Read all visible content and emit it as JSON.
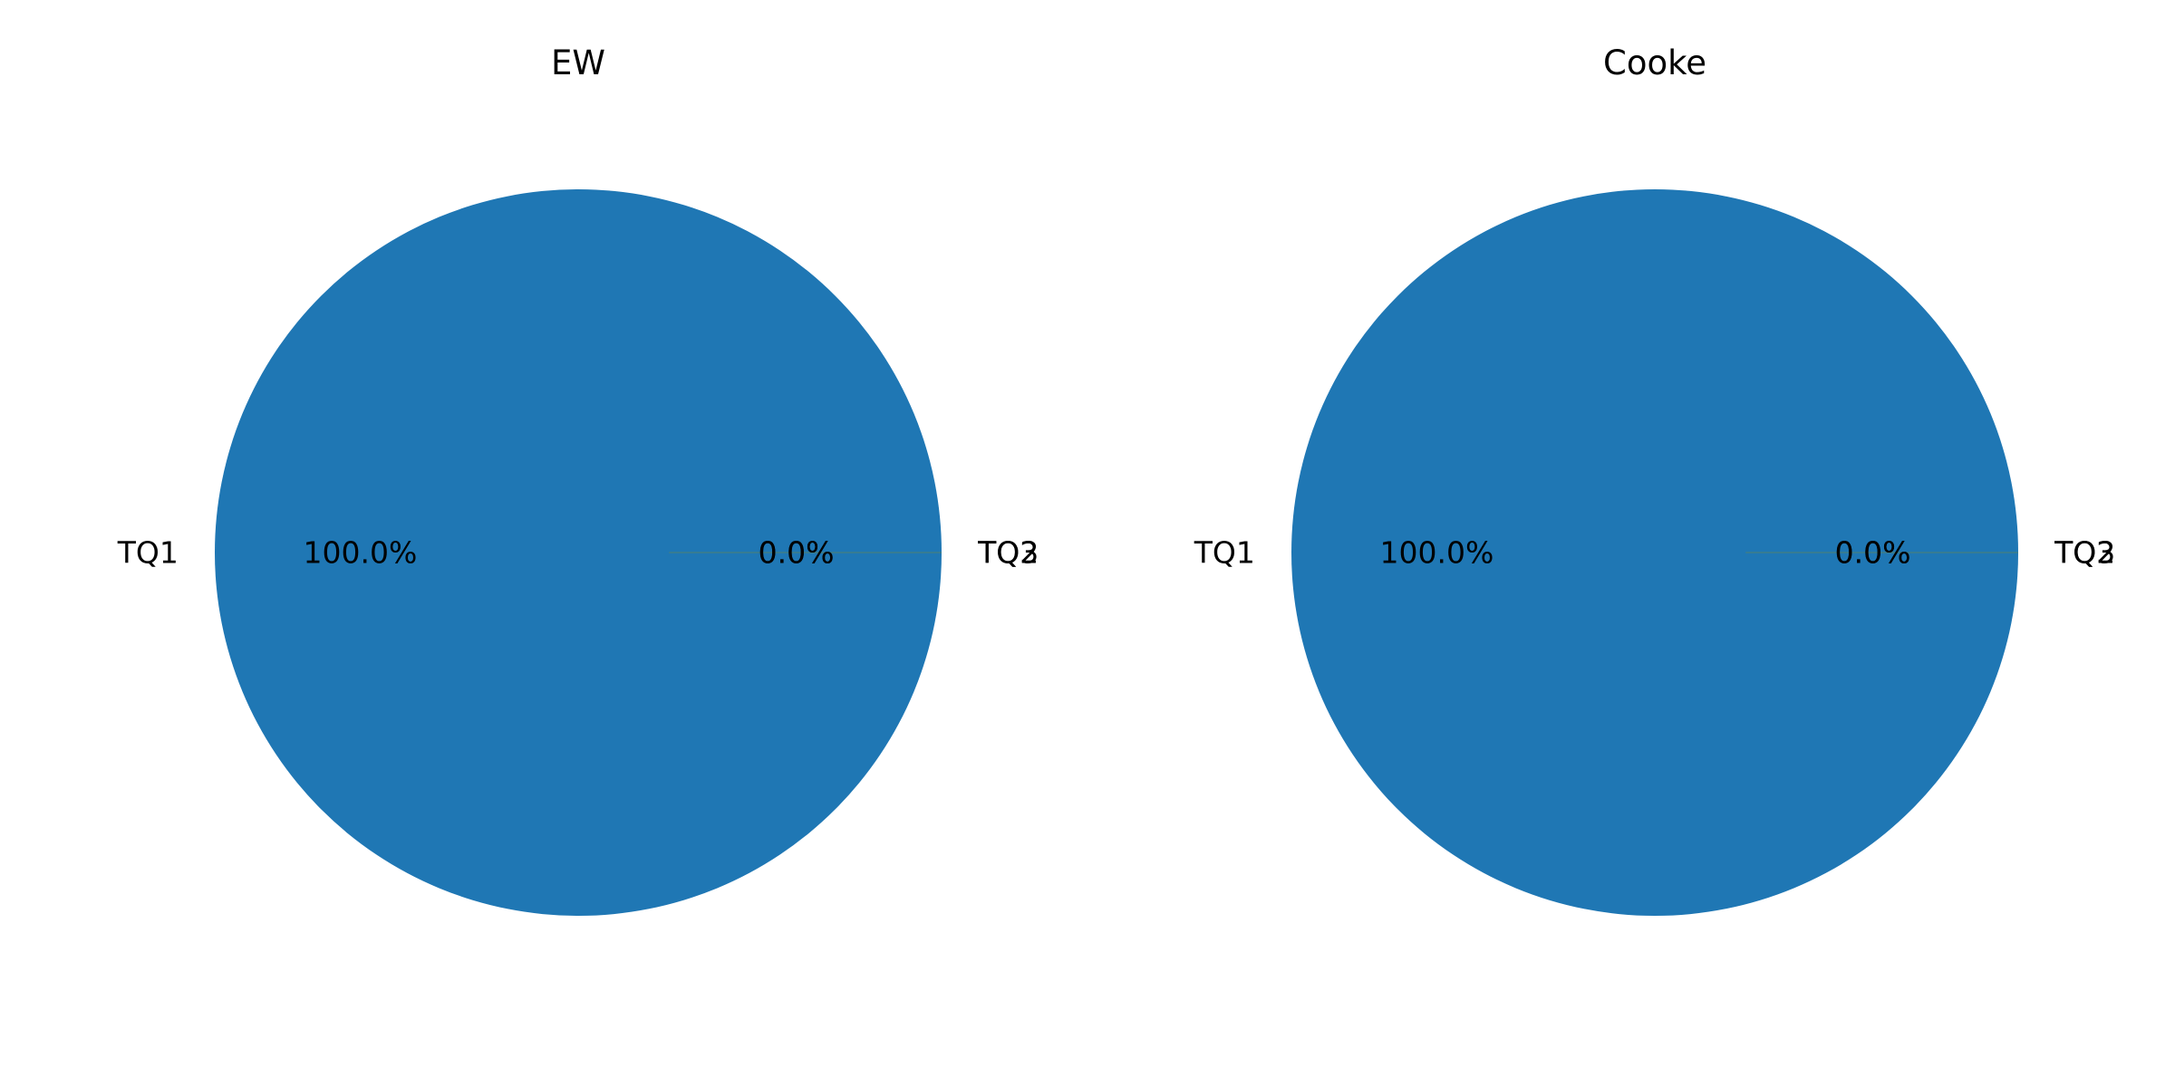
{
  "chart_data": [
    {
      "type": "pie",
      "title": "EW",
      "categories": [
        "TQ1",
        "TQ2",
        "TQ3"
      ],
      "values": [
        100.0,
        0.0,
        0.0
      ],
      "value_labels": [
        "100.0%",
        "0.0%",
        "0.0%"
      ],
      "colors": [
        "#1f77b4",
        "#ff7f0e",
        "#2ca02c"
      ],
      "legend": "none"
    },
    {
      "type": "pie",
      "title": "Cooke",
      "categories": [
        "TQ1",
        "TQ2",
        "TQ3"
      ],
      "values": [
        100.0,
        0.0,
        0.0
      ],
      "value_labels": [
        "100.0%",
        "0.0%",
        "0.0%"
      ],
      "colors": [
        "#1f77b4",
        "#ff7f0e",
        "#2ca02c"
      ],
      "legend": "none"
    }
  ]
}
